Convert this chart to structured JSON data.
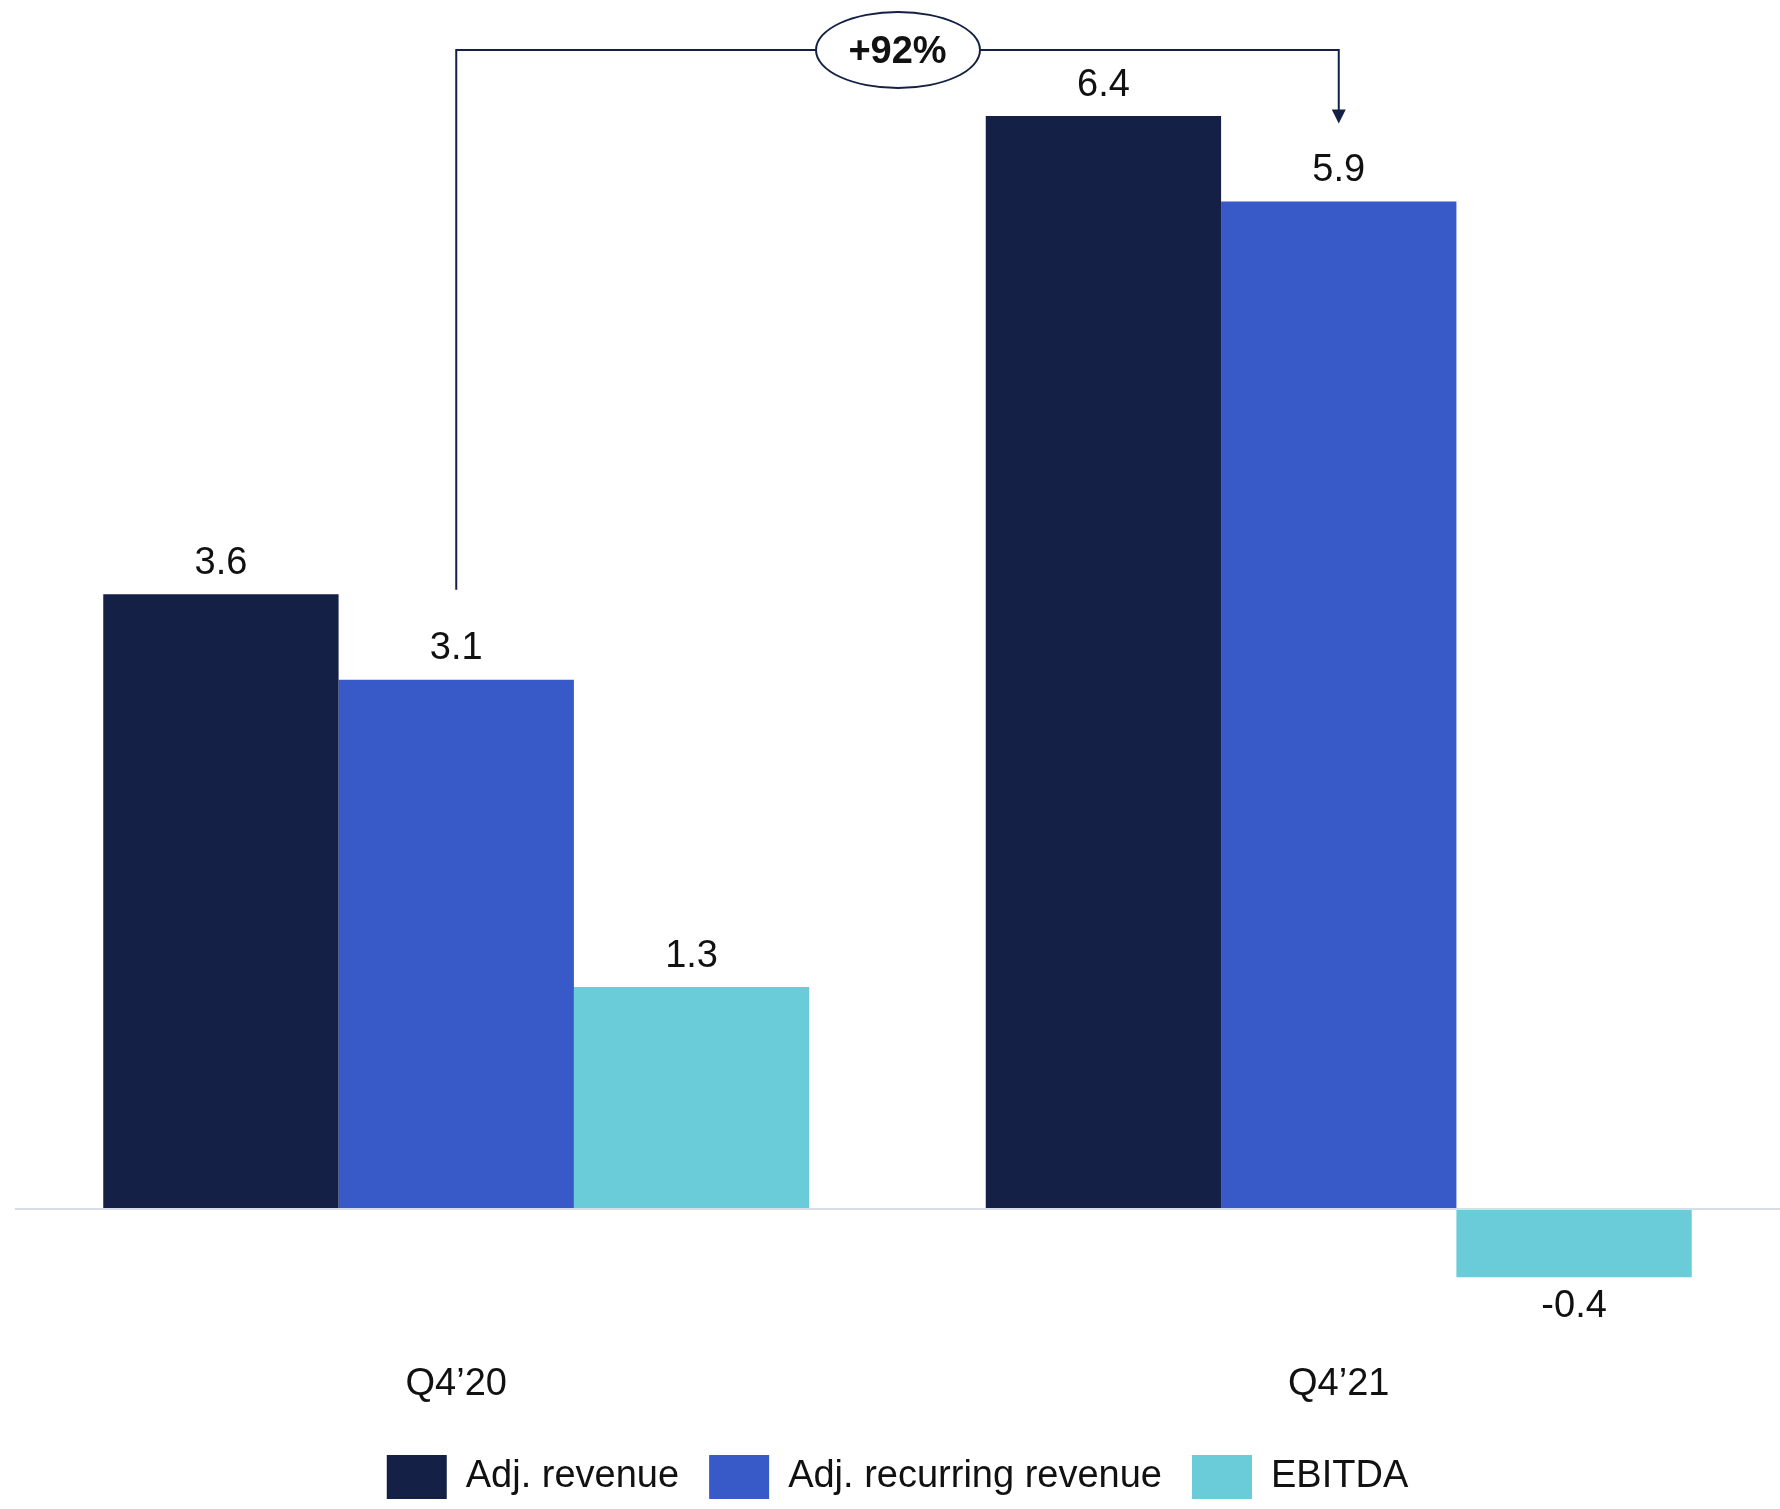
{
  "chart_data": {
    "type": "bar",
    "categories": [
      "Q4’20",
      "Q4’21"
    ],
    "series": [
      {
        "name": "Adj. revenue",
        "color": "#142045",
        "values": [
          3.6,
          6.4
        ]
      },
      {
        "name": "Adj. recurring revenue",
        "color": "#375ac8",
        "values": [
          3.1,
          5.9
        ]
      },
      {
        "name": "EBITDA",
        "color": "#69ccd8",
        "values": [
          1.3,
          -0.4
        ]
      }
    ],
    "tick_labels": "x",
    "data_labels": true,
    "legend": "bottom",
    "annotations": [
      "+92%"
    ]
  }
}
